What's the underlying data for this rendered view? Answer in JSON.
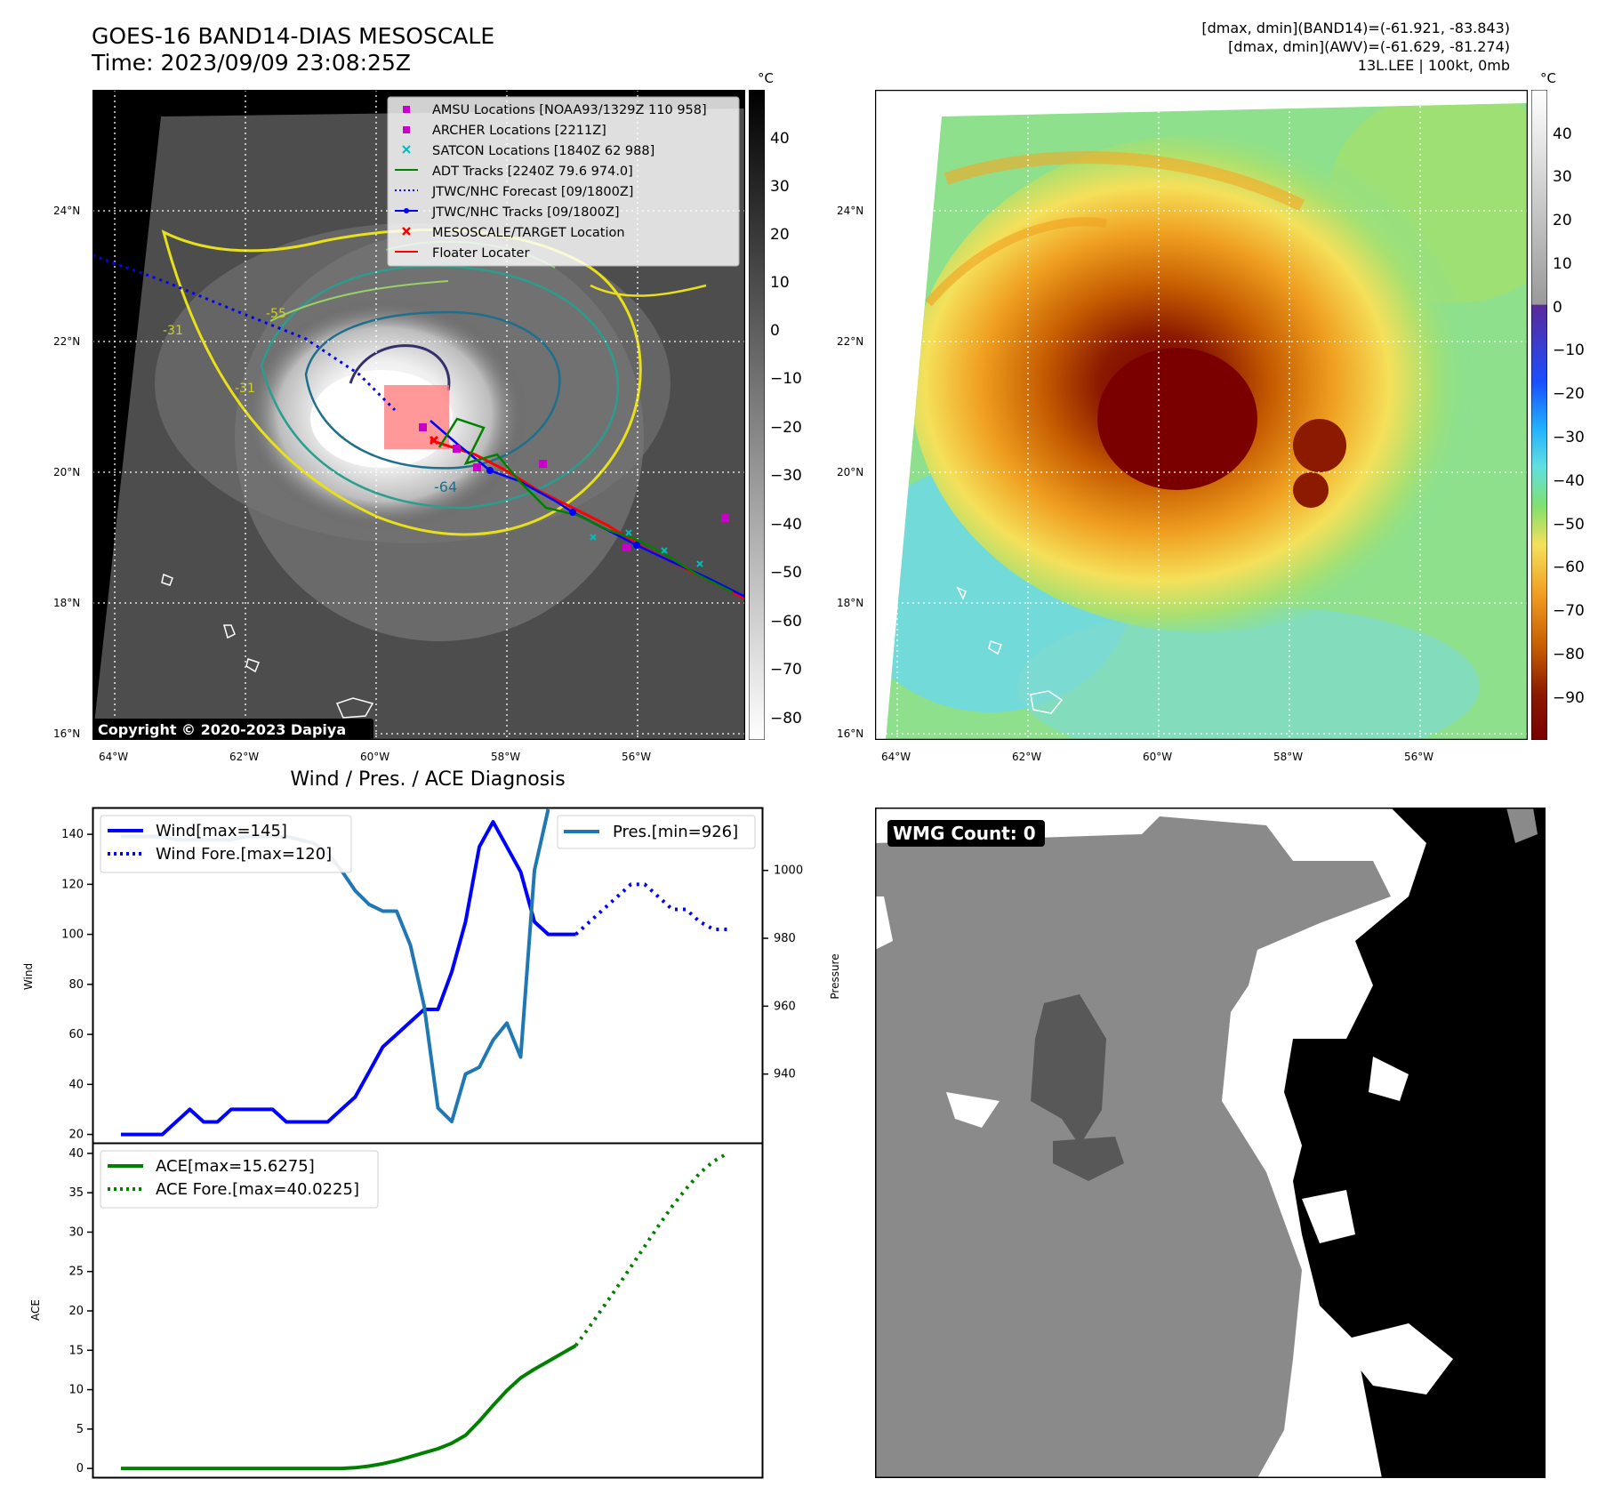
{
  "header": {
    "title_line1": "GOES-16 BAND14-DIAS MESOSCALE",
    "title_line2": "Time: 2023/09/09 23:08:25Z",
    "right_line1": "[dmax, dmin](BAND14)=(-61.921, -83.843)",
    "right_line2": "[dmax, dmin](AWV)=(-61.629, -81.274)",
    "right_line3": "13L.LEE | 100kt, 0mb"
  },
  "map_axes": {
    "lat_labels": [
      "24°N",
      "22°N",
      "20°N",
      "18°N",
      "16°N"
    ],
    "lon_labels": [
      "64°W",
      "62°W",
      "60°W",
      "58°W",
      "56°W"
    ]
  },
  "ir_map": {
    "legend": [
      {
        "label": "AMSU Locations [NOAA93/1329Z 110 958]",
        "color": "#c800c8",
        "marker": "square"
      },
      {
        "label": "ARCHER Locations [2211Z]",
        "color": "#c800c8",
        "marker": "square"
      },
      {
        "label": "SATCON Locations [1840Z 62 988]",
        "color": "#00bcbc",
        "marker": "x"
      },
      {
        "label": "ADT Tracks [2240Z 79.6 974.0]",
        "color": "#008000",
        "marker": "line"
      },
      {
        "label": "JTWC/NHC Forecast [09/1800Z]",
        "color": "#0000ff",
        "marker": "dotted"
      },
      {
        "label": "JTWC/NHC Tracks [09/1800Z]",
        "color": "#0000ff",
        "marker": "line-dot"
      },
      {
        "label": "MESOSCALE/TARGET Location",
        "color": "#ff0000",
        "marker": "xred"
      },
      {
        "label": "Floater Locater",
        "color": "#ff0000",
        "marker": "line"
      }
    ],
    "contour_labels": [
      "-64",
      "-55",
      "-31",
      "-31"
    ],
    "copyright": "Copyright © 2020-2023 Dapiya",
    "colorbar_unit": "°C",
    "colorbar_ticks": [
      "40",
      "30",
      "20",
      "10",
      "0",
      "−10",
      "−20",
      "−30",
      "−40",
      "−50",
      "−60",
      "−70",
      "−80"
    ]
  },
  "awv_map": {
    "colorbar_unit": "°C",
    "colorbar_ticks": [
      "40",
      "30",
      "20",
      "10",
      "0",
      "−10",
      "−20",
      "−30",
      "−40",
      "−50",
      "−60",
      "−70",
      "−80",
      "−90"
    ]
  },
  "wmg": {
    "label": "WMG Count: 0"
  },
  "chart_data": [
    {
      "type": "line",
      "title": "Wind / Pres. / ACE Diagnosis",
      "ylabel": "Wind",
      "y2label": "Pressure",
      "ylim": [
        17,
        150
      ],
      "y2lim": [
        920,
        1018
      ],
      "yticks": [
        20,
        40,
        60,
        80,
        100,
        120,
        140
      ],
      "y2ticks": [
        940,
        960,
        980,
        1000
      ],
      "series": [
        {
          "name": "Wind[max=145]",
          "color": "#0000ff",
          "style": "solid",
          "values": [
            20,
            20,
            20,
            20,
            25,
            30,
            25,
            25,
            30,
            30,
            30,
            30,
            25,
            25,
            25,
            25,
            30,
            35,
            45,
            55,
            60,
            65,
            70,
            70,
            85,
            105,
            135,
            145,
            135,
            125,
            105,
            100,
            100,
            100
          ]
        },
        {
          "name": "Wind Fore.[max=120]",
          "color": "#0000ff",
          "style": "dotted",
          "start_index": 33,
          "values": [
            100,
            105,
            110,
            115,
            120,
            120,
            115,
            110,
            110,
            105,
            102,
            102
          ]
        },
        {
          "name": "Pres.[min=926]",
          "color": "#1f77b4",
          "style": "solid",
          "axis": "right",
          "values": [
            1010,
            1010,
            1010,
            1010,
            1009,
            1009,
            1009,
            1009,
            1009,
            1010,
            1010,
            1010,
            1010,
            1009,
            1008,
            1005,
            1000,
            994,
            990,
            988,
            988,
            978,
            960,
            930,
            926,
            940,
            942,
            950,
            955,
            945,
            1000,
            1025
          ]
        }
      ]
    },
    {
      "type": "line",
      "ylabel": "ACE",
      "ylim": [
        -1,
        41
      ],
      "yticks": [
        0,
        5,
        10,
        15,
        20,
        25,
        30,
        35,
        40
      ],
      "series": [
        {
          "name": "ACE[max=15.6275]",
          "color": "#008000",
          "style": "solid",
          "values": [
            0,
            0,
            0,
            0,
            0,
            0,
            0,
            0,
            0,
            0,
            0,
            0,
            0,
            0,
            0,
            0,
            0,
            0.1,
            0.3,
            0.6,
            1,
            1.5,
            2,
            2.5,
            3.2,
            4.2,
            6,
            8,
            9.9,
            11.5,
            12.6,
            13.6,
            14.6,
            15.6
          ]
        },
        {
          "name": "ACE Fore.[max=40.0225]",
          "color": "#008000",
          "style": "dotted",
          "start_index": 33,
          "values": [
            15.6,
            18,
            20.5,
            23,
            25.6,
            28.2,
            30.8,
            33.3,
            35.5,
            37.5,
            39,
            40.0
          ]
        }
      ]
    }
  ]
}
